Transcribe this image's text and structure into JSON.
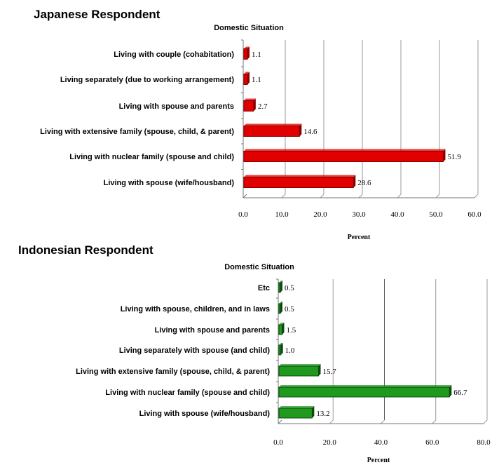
{
  "chart_data": [
    {
      "type": "bar",
      "orientation": "horizontal",
      "title": "Japanese Respondent",
      "subtitle": "Domestic Situation",
      "xlabel": "Percent",
      "ylabel": "",
      "xlim": [
        0,
        60
      ],
      "ticks": [
        "0.0",
        "10.0",
        "20.0",
        "30.0",
        "40.0",
        "50.0",
        "60.0"
      ],
      "categories": [
        "Living with couple (cohabitation)",
        "Living separately (due to working arrangement)",
        "Living with spouse and parents",
        "Living with extensive family (spouse, child, & parent)",
        "Living with nuclear family (spouse and child)",
        "Living with spouse (wife/housband)"
      ],
      "values": [
        1.1,
        1.1,
        2.7,
        14.6,
        51.9,
        28.6
      ],
      "value_labels": [
        "1.1",
        "1.1",
        "2.7",
        "14.6",
        "51.9",
        "28.6"
      ],
      "bar_color": "#e00000",
      "bar_edge_color": "#8b0000",
      "grid": true,
      "legend": "none"
    },
    {
      "type": "bar",
      "orientation": "horizontal",
      "title": "Indonesian Respondent",
      "subtitle": "Domestic Situation",
      "xlabel": "Percent",
      "ylabel": "",
      "xlim": [
        0,
        80
      ],
      "ticks": [
        "0.0",
        "20.0",
        "40.0",
        "60.0",
        "80.0"
      ],
      "categories": [
        "Etc",
        "Living with spouse, children, and in laws",
        "Living with spouse and parents",
        "Living separately with spouse (and child)",
        "Living with extensive family (spouse, child, & parent)",
        "Living with nuclear family (spouse and child)",
        "Living with spouse (wife/housband)"
      ],
      "values": [
        0.5,
        0.5,
        1.5,
        1.0,
        15.7,
        66.7,
        13.2
      ],
      "value_labels": [
        "0.5",
        "0.5",
        "1.5",
        "1.0",
        "15.7",
        "66.7",
        "13.2"
      ],
      "bar_color": "#1f9a1f",
      "bar_edge_color": "#0a4a0a",
      "grid": true,
      "legend": "none"
    }
  ]
}
